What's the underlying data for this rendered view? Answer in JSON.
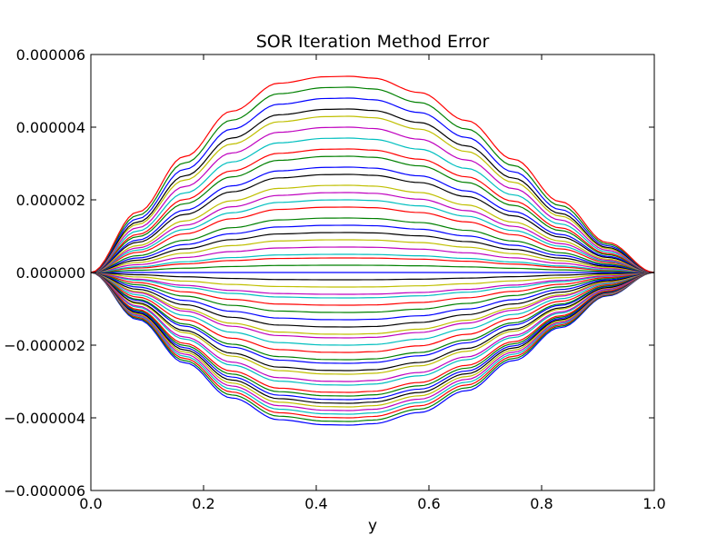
{
  "chart_data": {
    "type": "line",
    "title": "SOR Iteration Method Error",
    "xlabel": "y",
    "ylabel": "",
    "xlim": [
      0.0,
      1.0
    ],
    "ylim": [
      -6e-06,
      6e-06
    ],
    "xticks": [
      0.0,
      0.2,
      0.4,
      0.6,
      0.8,
      1.0
    ],
    "xtick_labels": [
      "0.0",
      "0.2",
      "0.4",
      "0.6",
      "0.8",
      "1.0"
    ],
    "yticks": [
      -6e-06,
      -4e-06,
      -2e-06,
      0.0,
      2e-06,
      4e-06,
      6e-06
    ],
    "ytick_labels": [
      "−0.000006",
      "−0.000004",
      "−0.000002",
      "0.000000",
      "0.000002",
      "0.000004",
      "0.000006"
    ],
    "grid": false,
    "legend": "none",
    "peak_x": 0.46,
    "x": [
      0.0,
      0.0833,
      0.1667,
      0.25,
      0.3333,
      0.4167,
      0.46,
      0.5,
      0.5833,
      0.6667,
      0.75,
      0.8333,
      0.9167,
      1.0
    ],
    "curve_shape": [
      0.0,
      0.3083,
      0.5915,
      0.8221,
      0.9647,
      0.9978,
      1.0,
      0.9909,
      0.9174,
      0.7744,
      0.5773,
      0.3611,
      0.1532,
      0.0
    ],
    "color_cycle": [
      "#0000ff",
      "#008000",
      "#ff0000",
      "#00bfbf",
      "#bf00bf",
      "#bfbf00",
      "#000000"
    ],
    "peak_values": [
      -4.2e-06,
      -4.1e-06,
      -4e-06,
      -3.9e-06,
      -3.8e-06,
      -3.7e-06,
      -3.6e-06,
      -3.5e-06,
      -3.4e-06,
      -3.3e-06,
      -3.1e-06,
      -3e-06,
      -2.8e-06,
      -2.7e-06,
      -2.5e-06,
      -2.4e-06,
      -2.2e-06,
      -2e-06,
      -1.8e-06,
      -1.7e-06,
      -1.5e-06,
      -1.3e-06,
      -1.1e-06,
      -9e-07,
      -7e-07,
      -6e-07,
      -4e-07,
      -2e-07,
      0.0,
      2e-07,
      4e-07,
      5e-07,
      7e-07,
      9e-07,
      1.1e-06,
      1.3e-06,
      1.5e-06,
      1.8e-06,
      2e-06,
      2.2e-06,
      2.4e-06,
      2.7e-06,
      2.9e-06,
      3.2e-06,
      3.4e-06,
      3.7e-06,
      4e-06,
      4.3e-06,
      4.5e-06,
      4.8e-06,
      5.1e-06,
      5.4e-06
    ]
  }
}
